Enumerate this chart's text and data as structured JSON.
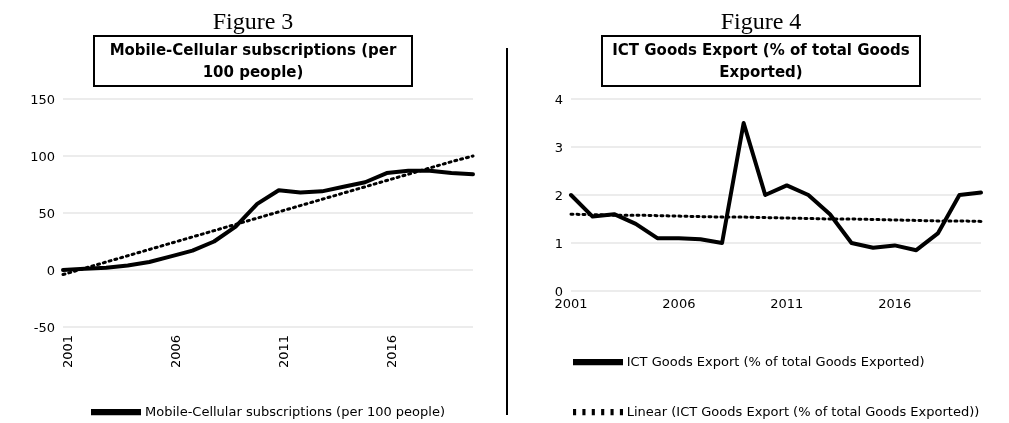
{
  "chart_data": [
    {
      "type": "line",
      "title": "Figure 3",
      "subtitle": "Mobile-Cellular subscriptions (per 100 people)",
      "categories": [
        "2001",
        null,
        null,
        null,
        null,
        "2006",
        null,
        null,
        null,
        null,
        "2011",
        null,
        null,
        null,
        null,
        "2016",
        null,
        null,
        null,
        null
      ],
      "series": [
        {
          "name": "Mobile-Cellular subscriptions (per 100 people)",
          "color": "#000000",
          "values": [
            0,
            1,
            2,
            4,
            7,
            12,
            17,
            25,
            38,
            58,
            70,
            68,
            69,
            73,
            77,
            85,
            87,
            87,
            85,
            84
          ]
        },
        {
          "color": "#000000",
          "line_style": "dotted",
          "values": [
            -4,
            1.5,
            7,
            12.5,
            18,
            23.5,
            29,
            34.5,
            40,
            45.5,
            51,
            56.5,
            62,
            67.5,
            73,
            78.5,
            84,
            89.5,
            95,
            100
          ]
        }
      ],
      "ylim": [
        -50,
        150
      ],
      "yticks": [
        -50,
        0,
        50,
        100,
        150
      ],
      "grid": "y",
      "legend": "bottom",
      "line_style": "solid",
      "marker": "none"
    },
    {
      "type": "line",
      "title": "Figure 4",
      "subtitle": "ICT Goods Export (% of total Goods Exported)",
      "categories": [
        "2001",
        null,
        null,
        null,
        null,
        "2006",
        null,
        null,
        null,
        null,
        "2011",
        null,
        null,
        null,
        null,
        "2016",
        null,
        null,
        null,
        null
      ],
      "series": [
        {
          "name": "ICT Goods Export (% of total Goods Exported)",
          "color": "#000000",
          "values": [
            2.0,
            1.55,
            1.6,
            1.4,
            1.1,
            1.1,
            1.08,
            1.0,
            3.5,
            2.0,
            2.2,
            2.0,
            1.6,
            1.0,
            0.9,
            0.95,
            0.85,
            1.2,
            2.0,
            2.05
          ]
        },
        {
          "name": "Linear (ICT Goods Export (% of total Goods Exported))",
          "color": "#000000",
          "line_style": "dotted",
          "values": [
            1.6,
            1.59,
            1.58,
            1.58,
            1.57,
            1.56,
            1.55,
            1.54,
            1.54,
            1.53,
            1.52,
            1.51,
            1.5,
            1.5,
            1.49,
            1.48,
            1.47,
            1.46,
            1.46,
            1.45
          ]
        }
      ],
      "ylim": [
        0,
        4
      ],
      "yticks": [
        0,
        1,
        2,
        3,
        4
      ],
      "grid": "y",
      "legend": "bottom",
      "line_style": "solid",
      "marker": "none"
    }
  ]
}
